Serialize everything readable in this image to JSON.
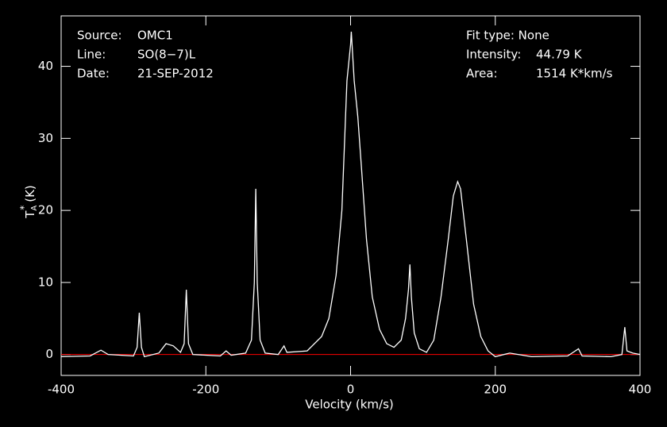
{
  "chart_data": {
    "type": "line",
    "background": "#000000",
    "xlabel": "Velocity (km/s)",
    "ylabel": {
      "main": "T",
      "sub": "A",
      "sup": "*",
      "unit": "(K)"
    },
    "info_left": [
      [
        "Source:",
        "OMC1"
      ],
      [
        "Line:",
        "SO(8−7)L"
      ],
      [
        "Date:",
        "21-SEP-2012"
      ]
    ],
    "info_right": [
      [
        "Fit type: None"
      ],
      [
        "Intensity:",
        "44.79 K"
      ],
      [
        "Area:",
        "1514 K*km/s"
      ]
    ],
    "xlim": [
      -400,
      400
    ],
    "xticks": [
      -400,
      -200,
      0,
      200,
      400
    ],
    "ylim": [
      -2.9,
      47
    ],
    "yticks": [
      0,
      10,
      20,
      30,
      40
    ],
    "baseline": {
      "value": 0,
      "color": "#ff0000"
    },
    "color": "#ffffff",
    "x": [
      -400,
      -360,
      -345,
      -335,
      -300,
      -295,
      -292,
      -289,
      -285,
      -265,
      -255,
      -245,
      -235,
      -230,
      -227,
      -224,
      -218,
      -180,
      -172,
      -165,
      -145,
      -137,
      -133,
      -131,
      -129,
      -125,
      -118,
      -100,
      -92,
      -88,
      -60,
      -40,
      -30,
      -20,
      -12,
      -5,
      0,
      1,
      5,
      10,
      15,
      22,
      30,
      40,
      50,
      60,
      70,
      76,
      80,
      82,
      84,
      88,
      95,
      105,
      115,
      125,
      135,
      142,
      148,
      152,
      160,
      170,
      180,
      190,
      200,
      220,
      250,
      300,
      315,
      320,
      360,
      375,
      379,
      382,
      390,
      400
    ],
    "values": [
      -0.3,
      -0.2,
      0.6,
      0,
      -0.2,
      1,
      5.8,
      1,
      -0.3,
      0.2,
      1.5,
      1.2,
      0.3,
      1.5,
      9,
      1.5,
      0,
      -0.2,
      0.5,
      -0.1,
      0.2,
      2,
      10,
      23,
      10,
      2,
      0.2,
      0,
      1.2,
      0.3,
      0.5,
      2.5,
      5,
      11,
      20,
      38,
      43,
      44.8,
      38,
      33,
      26,
      16,
      8,
      3.5,
      1.5,
      1,
      2,
      5,
      9,
      12.5,
      8,
      3,
      0.8,
      0.3,
      2,
      8,
      16,
      22,
      24,
      23,
      16,
      7,
      2.5,
      0.5,
      -0.3,
      0.2,
      -0.3,
      -0.2,
      0.8,
      -0.2,
      -0.3,
      0,
      3.8,
      0.5,
      0.2,
      0
    ]
  }
}
